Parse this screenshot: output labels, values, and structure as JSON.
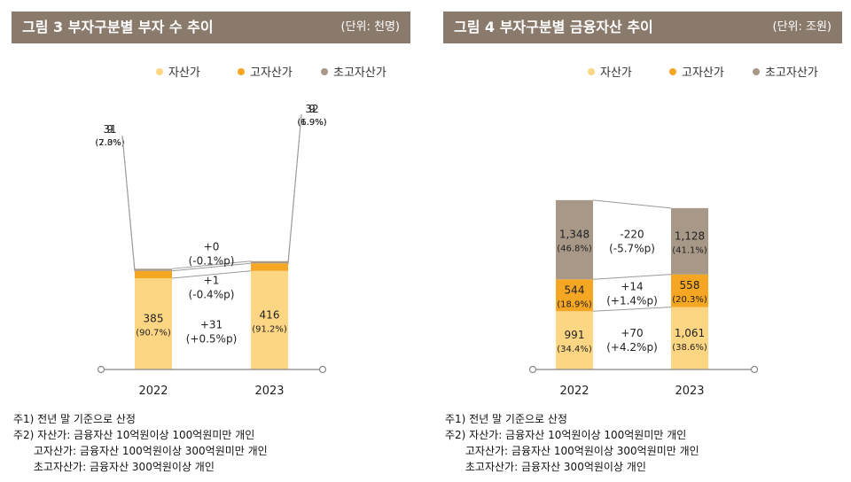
{
  "figures": [
    {
      "title": "그림 3  부자구분별 부자 수 추이",
      "unit": "(단위: 천명)",
      "notes": [
        "주1) 전년 말 기준으로 산정",
        "주2) 자산가: 금융자산 10억원이상 100억원미만 개인",
        "      고자산가: 금융자산 100억원이상 300억원미만 개인",
        "      초고자산가: 금융자산 300억원이상 개인"
      ]
    },
    {
      "title": "그림 4  부자구분별 금융자산 추이",
      "unit": "(단위: 조원)",
      "notes": [
        "주1) 전년 말 기준으로 산정",
        "주2) 자산가: 금융자산 10억원이상 100억원미만 개인",
        "      고자산가: 금융자산 100억원이상 300억원미만 개인",
        "      초고자산가: 금융자산 300억원이상 개인"
      ]
    }
  ],
  "colors": {
    "자산가": "#fcd683",
    "고자산가": "#f5a623",
    "초고자산가": "#a89888",
    "header": "#8a7a6c"
  },
  "chart_data": [
    {
      "type": "bar",
      "stacked": true,
      "title": "그림 3  부자구분별 부자 수 추이",
      "unit": "(단위: 천명)",
      "categories": [
        "2022",
        "2023"
      ],
      "legend_position": "top-right",
      "series": [
        {
          "name": "자산가",
          "values": [
            385,
            416
          ],
          "labels": [
            "385",
            "416"
          ],
          "shares": [
            "(90.7%)",
            "(91.2%)"
          ],
          "change": "+31",
          "change_share": "(+0.5%p)"
        },
        {
          "name": "고자산가",
          "values": [
            31,
            32
          ],
          "labels": [
            "31",
            "32"
          ],
          "shares": [
            "(7.3%)",
            "(6.9%)"
          ],
          "change": "+1",
          "change_share": "(-0.4%p)"
        },
        {
          "name": "초고자산가",
          "values": [
            9,
            9
          ],
          "labels": [
            "9",
            "9"
          ],
          "shares": [
            "(2.0%)",
            "(1.9%)"
          ],
          "change": "+0",
          "change_share": "(-0.1%p)"
        }
      ]
    },
    {
      "type": "bar",
      "stacked": true,
      "title": "그림 4  부자구분별 금융자산 추이",
      "unit": "(단위: 조원)",
      "categories": [
        "2022",
        "2023"
      ],
      "legend_position": "top-right",
      "series": [
        {
          "name": "자산가",
          "values": [
            991,
            1061
          ],
          "labels": [
            "991",
            "1,061"
          ],
          "shares": [
            "(34.4%)",
            "(38.6%)"
          ],
          "change": "+70",
          "change_share": "(+4.2%p)"
        },
        {
          "name": "고자산가",
          "values": [
            544,
            558
          ],
          "labels": [
            "544",
            "558"
          ],
          "shares": [
            "(18.9%)",
            "(20.3%)"
          ],
          "change": "+14",
          "change_share": "(+1.4%p)"
        },
        {
          "name": "초고자산가",
          "values": [
            1348,
            1128
          ],
          "labels": [
            "1,348",
            "1,128"
          ],
          "shares": [
            "(46.8%)",
            "(41.1%)"
          ],
          "change": "-220",
          "change_share": "(-5.7%p)"
        }
      ]
    }
  ]
}
